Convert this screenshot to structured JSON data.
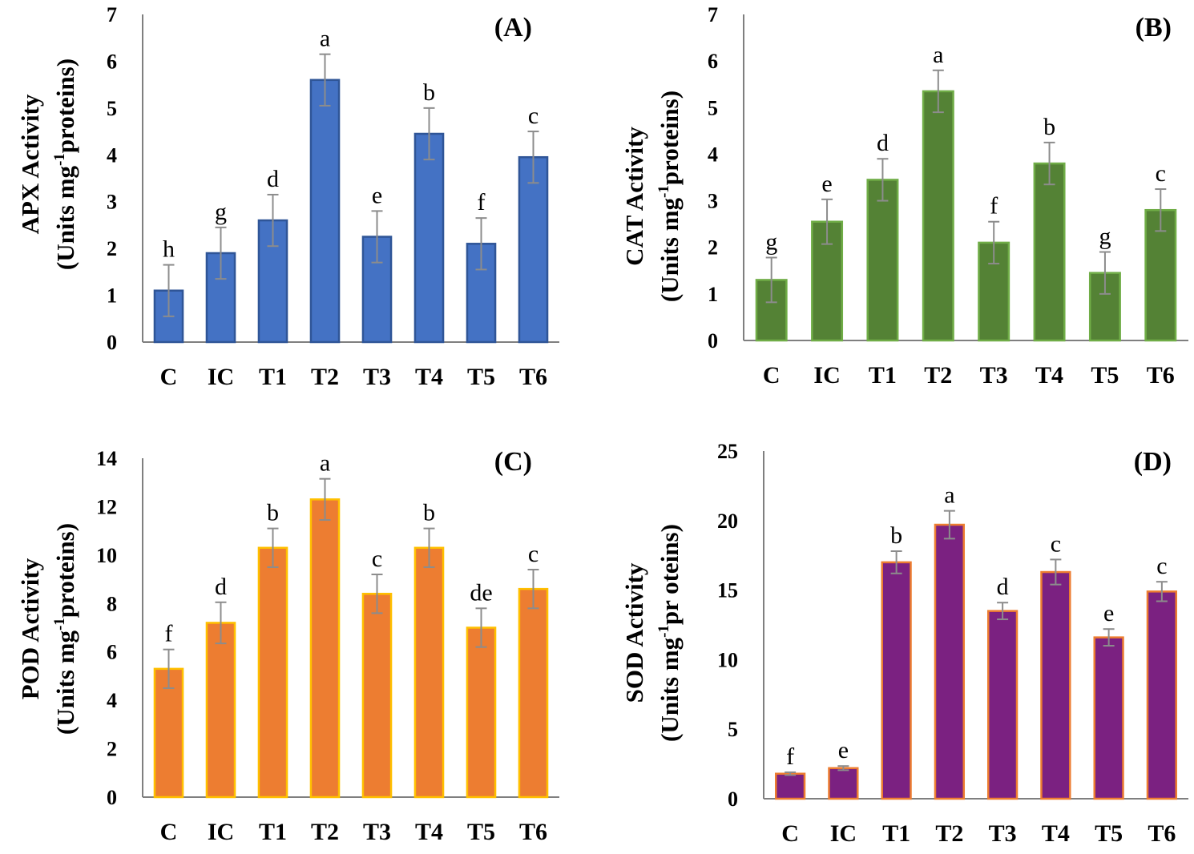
{
  "chart_data": [
    {
      "type": "bar",
      "panel": "(A)",
      "ylabel_line1": "APX Activity",
      "ylabel_line2_pre": "(Units mg",
      "ylabel_line2_sup": "-1",
      "ylabel_line2_post": "proteins)",
      "categories": [
        "C",
        "IC",
        "T1",
        "T2",
        "T3",
        "T4",
        "T5",
        "T6"
      ],
      "values": [
        1.1,
        1.9,
        2.6,
        5.6,
        2.25,
        4.45,
        2.1,
        3.95
      ],
      "errors": [
        0.55,
        0.55,
        0.55,
        0.55,
        0.55,
        0.55,
        0.55,
        0.55
      ],
      "letters": [
        "h",
        "g",
        "d",
        "a",
        "e",
        "b",
        "f",
        "c"
      ],
      "ylim": [
        0,
        7
      ],
      "yticks": [
        "0",
        "1",
        "2",
        "3",
        "4",
        "5",
        "6",
        "7"
      ],
      "color": "#4472C4",
      "edge": "#2F5597"
    },
    {
      "type": "bar",
      "panel": "(B)",
      "ylabel_line1": "CAT Activity",
      "ylabel_line2_pre": "(Units mg",
      "ylabel_line2_sup": "-1",
      "ylabel_line2_post": "proteins)",
      "categories": [
        "C",
        "IC",
        "T1",
        "T2",
        "T3",
        "T4",
        "T5",
        "T6"
      ],
      "values": [
        1.3,
        2.55,
        3.45,
        5.35,
        2.1,
        3.8,
        1.45,
        2.8
      ],
      "errors": [
        0.48,
        0.48,
        0.45,
        0.45,
        0.45,
        0.45,
        0.45,
        0.45
      ],
      "letters": [
        "g",
        "e",
        "d",
        "a",
        "f",
        "b",
        "g",
        "c"
      ],
      "ylim": [
        0,
        7
      ],
      "yticks": [
        "0",
        "1",
        "2",
        "3",
        "4",
        "5",
        "6",
        "7"
      ],
      "color": "#548235",
      "edge": "#70AD47"
    },
    {
      "type": "bar",
      "panel": "(C)",
      "ylabel_line1": "POD Activity",
      "ylabel_line2_pre": "(Units mg",
      "ylabel_line2_sup": "-1",
      "ylabel_line2_post": "proteins)",
      "categories": [
        "C",
        "IC",
        "T1",
        "T2",
        "T3",
        "T4",
        "T5",
        "T6"
      ],
      "values": [
        5.3,
        7.2,
        10.3,
        12.3,
        8.4,
        10.3,
        7.0,
        8.6
      ],
      "errors": [
        0.8,
        0.85,
        0.8,
        0.85,
        0.8,
        0.8,
        0.8,
        0.8
      ],
      "letters": [
        "f",
        "d",
        "b",
        "a",
        "c",
        "b",
        "de",
        "c"
      ],
      "ylim": [
        0,
        14
      ],
      "yticks": [
        "0",
        "2",
        "4",
        "6",
        "8",
        "10",
        "12",
        "14"
      ],
      "color": "#ED7D31",
      "edge": "#FFC000"
    },
    {
      "type": "bar",
      "panel": "(D)",
      "ylabel_line1": "SOD Activity",
      "ylabel_line2_pre": "(Units mg",
      "ylabel_line2_sup": "-1",
      "ylabel_line2_post": "pr oteins)",
      "categories": [
        "C",
        "IC",
        "T1",
        "T2",
        "T3",
        "T4",
        "T5",
        "T6"
      ],
      "values": [
        1.8,
        2.2,
        17.0,
        19.7,
        13.5,
        16.3,
        11.6,
        14.9
      ],
      "errors": [
        0.1,
        0.15,
        0.8,
        1.0,
        0.6,
        0.9,
        0.6,
        0.7
      ],
      "letters": [
        "f",
        "e",
        "b",
        "a",
        "d",
        "c",
        "e",
        "c"
      ],
      "ylim": [
        0,
        25
      ],
      "yticks": [
        "0",
        "5",
        "10",
        "15",
        "20",
        "25"
      ],
      "color": "#7B2181",
      "edge": "#ED7D31"
    }
  ]
}
